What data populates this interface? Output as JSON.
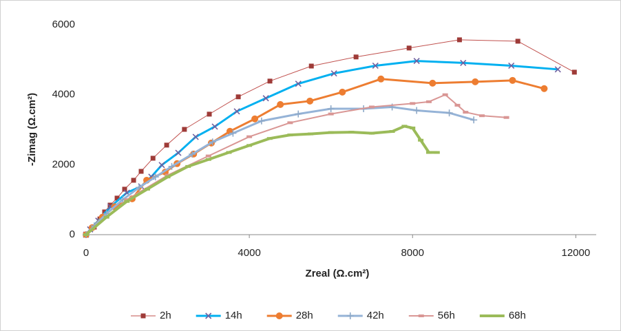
{
  "chart_data": {
    "type": "scatter-line",
    "x_label": "Zreal (Ω.cm²)",
    "y_label": "-Zimag (Ω.cm²)",
    "xlim": [
      0,
      12500
    ],
    "xticks": [
      0,
      4000,
      8000,
      12000
    ],
    "ylim": [
      0,
      6000
    ],
    "yticks": [
      0,
      2000,
      4000,
      6000
    ],
    "legend": "bottom",
    "series": [
      {
        "name": "2h",
        "color": "#c0504d",
        "marker_color": "#9e3b38",
        "marker": "square",
        "width": 1,
        "x": [
          0,
          200,
          340,
          455,
          590,
          760,
          945,
          1165,
          1350,
          1640,
          1975,
          2410,
          3020,
          3730,
          4505,
          5520,
          6615,
          7915,
          9150,
          10580,
          11965
        ],
        "y": [
          0,
          215,
          450,
          650,
          845,
          1045,
          1300,
          1555,
          1810,
          2185,
          2560,
          3010,
          3445,
          3940,
          4390,
          4820,
          5080,
          5335,
          5570,
          5530,
          4645
        ]
      },
      {
        "name": "14h",
        "color": "#00b0f0",
        "marker_color": "#7060a0",
        "marker": "x",
        "width": 3,
        "x": [
          0,
          100,
          300,
          600,
          1000,
          1350,
          1600,
          1855,
          2260,
          2685,
          3155,
          3695,
          4405,
          5200,
          6075,
          7090,
          8100,
          9240,
          10420,
          11560
        ],
        "y": [
          0,
          150,
          400,
          800,
          1200,
          1380,
          1655,
          1990,
          2340,
          2795,
          3090,
          3525,
          3900,
          4315,
          4610,
          4830,
          4965,
          4910,
          4830,
          4725
        ]
      },
      {
        "name": "28h",
        "color": "#ed7d31",
        "marker_color": "#ed7d31",
        "marker": "circle",
        "width": 3,
        "x": [
          0,
          150,
          400,
          700,
          1130,
          1485,
          1940,
          2230,
          2635,
          3070,
          3525,
          4135,
          4760,
          5485,
          6280,
          7225,
          8490,
          9535,
          10450,
          11225
        ],
        "y": [
          0,
          200,
          500,
          800,
          1025,
          1555,
          1790,
          2030,
          2305,
          2620,
          2955,
          3310,
          3720,
          3820,
          4075,
          4450,
          4330,
          4370,
          4410,
          4175
        ]
      },
      {
        "name": "42h",
        "color": "#95b3d7",
        "marker_color": "#8ea9c8",
        "marker": "plus",
        "width": 3,
        "x": [
          0,
          200,
          500,
          900,
          1300,
          1700,
          2100,
          2600,
          3100,
          3600,
          4300,
          5200,
          6000,
          6800,
          7500,
          8100,
          8900,
          9500
        ],
        "y": [
          0,
          250,
          600,
          1000,
          1350,
          1650,
          1950,
          2300,
          2650,
          2900,
          3250,
          3450,
          3600,
          3600,
          3650,
          3550,
          3480,
          3280
        ]
      },
      {
        "name": "56h",
        "color": "#d99694",
        "marker_color": "#d99694",
        "marker": "dash",
        "width": 2,
        "x": [
          0,
          500,
          1000,
          2000,
          3000,
          4000,
          5000,
          6000,
          7000,
          8000,
          8400,
          8800,
          9100,
          9300,
          9700,
          10300
        ],
        "y": [
          0,
          500,
          1000,
          1700,
          2250,
          2800,
          3200,
          3450,
          3650,
          3750,
          3800,
          4000,
          3700,
          3500,
          3400,
          3350
        ]
      },
      {
        "name": "68h",
        "color": "#9bbb59",
        "marker_color": "#9bbb59",
        "marker": "dash",
        "width": 4,
        "x": [
          0,
          500,
          1000,
          1500,
          2000,
          2500,
          3000,
          3500,
          4000,
          4500,
          5000,
          5500,
          6000,
          6500,
          7000,
          7500,
          7800,
          8000,
          8200,
          8400,
          8600
        ],
        "y": [
          0,
          500,
          950,
          1300,
          1650,
          1950,
          2150,
          2350,
          2550,
          2750,
          2850,
          2880,
          2920,
          2930,
          2900,
          2950,
          3100,
          3050,
          2700,
          2350,
          2350
        ]
      }
    ]
  }
}
